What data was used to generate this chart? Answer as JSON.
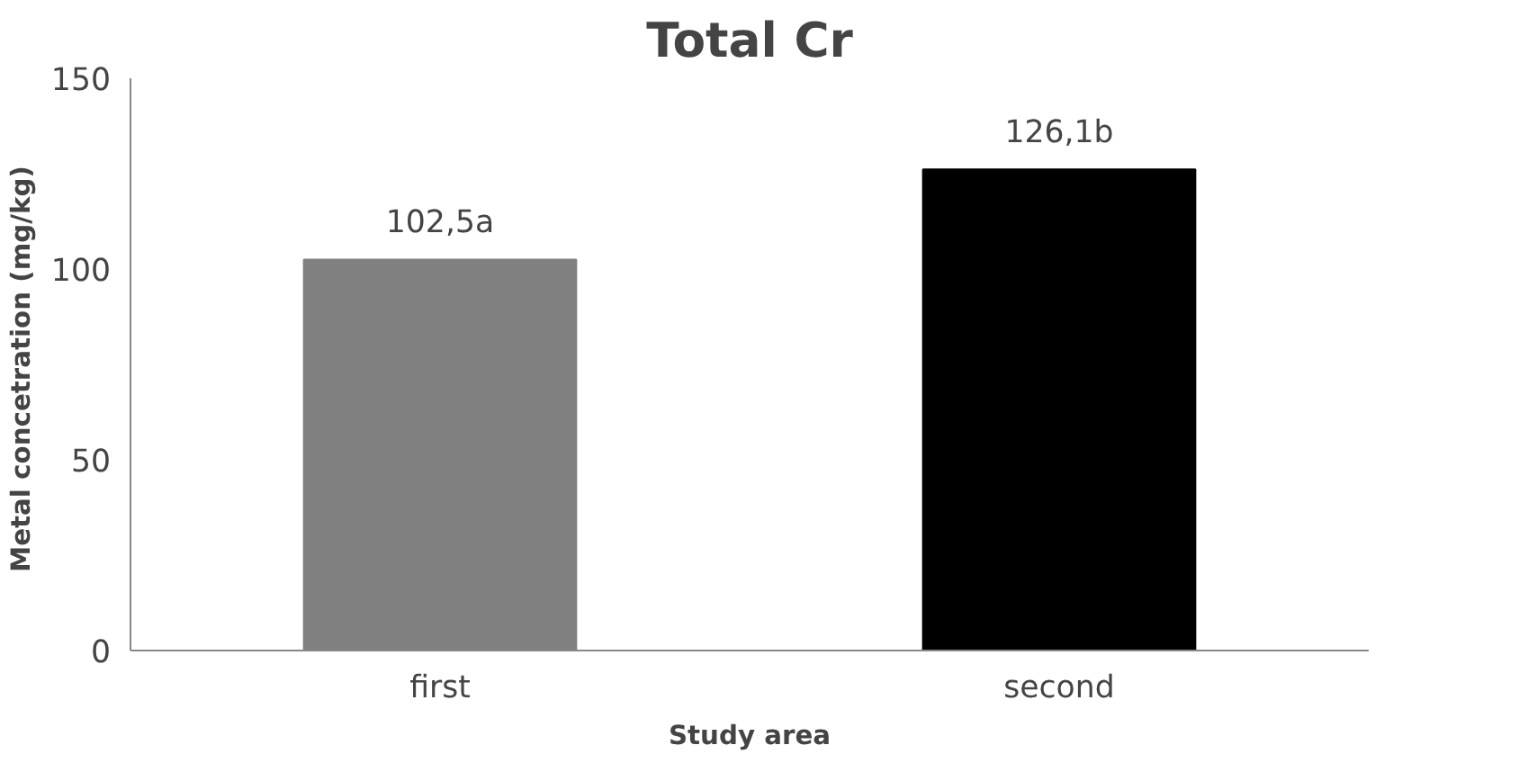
{
  "chart_data": {
    "type": "bar",
    "title": "Total Cr",
    "xlabel": "Study area",
    "ylabel": "Metal concetration  (mg/kg)",
    "categories": [
      "first",
      "second"
    ],
    "values": [
      102.5,
      126.1
    ],
    "colors": [
      "#808080",
      "#000000"
    ],
    "value_labels": [
      "102,5a",
      "126,1b"
    ],
    "ylim": [
      0,
      150
    ],
    "yticks": [
      0,
      50,
      100,
      150
    ],
    "grid": false
  }
}
